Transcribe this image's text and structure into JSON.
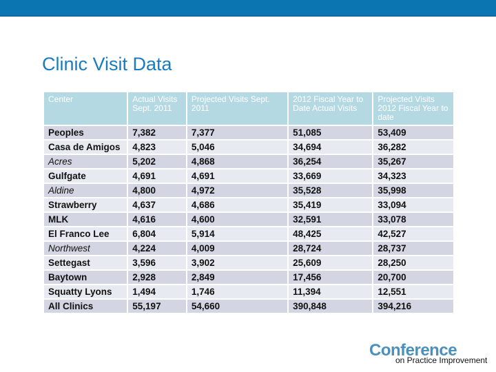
{
  "slide": {
    "title": "Clinic Visit Data"
  },
  "table": {
    "headers": [
      "Center",
      "Actual Visits Sept. 2011",
      "Projected Visits Sept. 2011",
      "2012 Fiscal Year to Date Actual Visits",
      "Projected Visits 2012 Fiscal Year  to date"
    ],
    "rows": [
      {
        "center": "Peoples",
        "actual": "7,382",
        "projected": "7,377",
        "fy_actual": "51,085",
        "fy_projected": "53,409"
      },
      {
        "center": "Casa de Amigos",
        "actual": "4,823",
        "projected": "5,046",
        "fy_actual": "34,694",
        "fy_projected": "36,282"
      },
      {
        "center": "Acres",
        "actual": "5,202",
        "projected": "4,868",
        "fy_actual": "36,254",
        "fy_projected": "35,267"
      },
      {
        "center": "Gulfgate",
        "actual": "4,691",
        "projected": "4,691",
        "fy_actual": "33,669",
        "fy_projected": "34,323"
      },
      {
        "center": "Aldine",
        "actual": "4,800",
        "projected": "4,972",
        "fy_actual": "35,528",
        "fy_projected": "35,998"
      },
      {
        "center": "Strawberry",
        "actual": "4,637",
        "projected": "4,686",
        "fy_actual": "35,419",
        "fy_projected": "33,094"
      },
      {
        "center": "MLK",
        "actual": "4,616",
        "projected": "4,600",
        "fy_actual": "32,591",
        "fy_projected": "33,078"
      },
      {
        "center": "El Franco Lee",
        "actual": "6,804",
        "projected": "5,914",
        "fy_actual": "48,425",
        "fy_projected": "42,527"
      },
      {
        "center": "Northwest",
        "actual": "4,224",
        "projected": "4,009",
        "fy_actual": "28,724",
        "fy_projected": "28,737"
      },
      {
        "center": "Settegast",
        "actual": "3,596",
        "projected": "3,902",
        "fy_actual": "25,609",
        "fy_projected": "28,250"
      },
      {
        "center": "Baytown",
        "actual": "2,928",
        "projected": "2,849",
        "fy_actual": "17,456",
        "fy_projected": "20,700"
      },
      {
        "center": "Squatty Lyons",
        "actual": "1,494",
        "projected": "1,746",
        "fy_actual": "11,394",
        "fy_projected": "12,551"
      },
      {
        "center": "All Clinics",
        "actual": "55,197",
        "projected": "54,660",
        "fy_actual": "390,848",
        "fy_projected": "394,216"
      }
    ]
  },
  "logo": {
    "main": "Conference",
    "sub": "on Practice Improvement"
  },
  "colors": {
    "top_bar": "#0a75b1",
    "title": "#1a7cbf",
    "header_bg": "#b4d9e3",
    "row_odd": "#d3d6e2",
    "row_even": "#e8eaf1",
    "logo": "#4b8fbf"
  }
}
